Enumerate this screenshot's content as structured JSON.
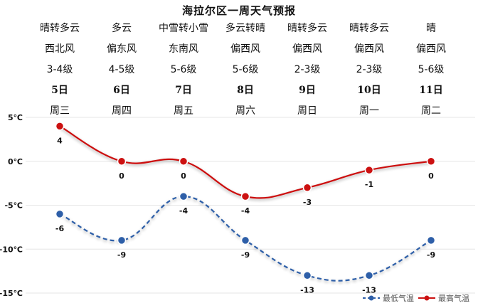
{
  "title": "海拉尔区一周天气预报",
  "days": [
    {
      "weather": "晴转多云",
      "wind_dir": "西北风",
      "wind_level": "3-4级",
      "date": "5日",
      "weekday": "周三"
    },
    {
      "weather": "多云",
      "wind_dir": "偏东风",
      "wind_level": "4-5级",
      "date": "6日",
      "weekday": "周四"
    },
    {
      "weather": "中雪转小雪",
      "wind_dir": "东南风",
      "wind_level": "5-6级",
      "date": "7日",
      "weekday": "周五"
    },
    {
      "weather": "多云转晴",
      "wind_dir": "偏西风",
      "wind_level": "5-6级",
      "date": "8日",
      "weekday": "周六"
    },
    {
      "weather": "晴转多云",
      "wind_dir": "偏西风",
      "wind_level": "2-3级",
      "date": "9日",
      "weekday": "周日"
    },
    {
      "weather": "晴转多云",
      "wind_dir": "偏西风",
      "wind_level": "2-3级",
      "date": "10日",
      "weekday": "周一"
    },
    {
      "weather": "晴",
      "wind_dir": "偏西风",
      "wind_level": "5-6级",
      "date": "11日",
      "weekday": "周二"
    }
  ],
  "chart_data": {
    "type": "line",
    "categories": [
      "5日",
      "6日",
      "7日",
      "8日",
      "9日",
      "10日",
      "11日"
    ],
    "series": [
      {
        "name": "最低气温",
        "values": [
          -6,
          -9,
          -4,
          -9,
          -13,
          -13,
          -9
        ],
        "color": "#2e5fa8",
        "style": "dashed"
      },
      {
        "name": "最高气温",
        "values": [
          4,
          0,
          0,
          -4,
          -3,
          -1,
          0
        ],
        "color": "#cc1111",
        "style": "solid"
      }
    ],
    "y_ticks": [
      "5℃",
      "0℃",
      "-5℃",
      "-10℃",
      "-15℃"
    ],
    "ylim": [
      -15,
      5
    ],
    "grid": true,
    "legend": "bottom-right",
    "smooth": true
  }
}
